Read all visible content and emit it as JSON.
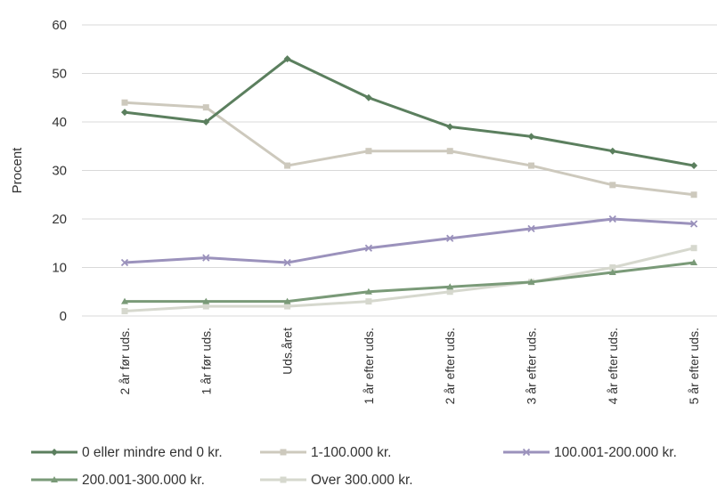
{
  "chart_data": {
    "type": "line",
    "title": "",
    "xlabel": "",
    "ylabel": "Procent",
    "ylim": [
      0,
      60
    ],
    "yticks": [
      0,
      10,
      20,
      30,
      40,
      50,
      60
    ],
    "grid": true,
    "legend_position": "bottom",
    "categories": [
      "2 år før uds.",
      "1 år før uds.",
      "Uds.året",
      "1 år efter uds.",
      "2 år efter uds.",
      "3 år efter uds.",
      "4 år efter uds.",
      "5 år efter uds."
    ],
    "series": [
      {
        "name": "0 eller mindre end 0 kr.",
        "color": "#5b7f5e",
        "marker": "diamond",
        "values": [
          42,
          40,
          53,
          45,
          39,
          37,
          34,
          31
        ]
      },
      {
        "name": "1-100.000 kr.",
        "color": "#cdc9bd",
        "marker": "square",
        "values": [
          44,
          43,
          31,
          34,
          34,
          31,
          27,
          25
        ]
      },
      {
        "name": "100.001-200.000 kr.",
        "color": "#9b92bc",
        "marker": "x",
        "values": [
          11,
          12,
          11,
          14,
          16,
          18,
          20,
          19
        ]
      },
      {
        "name": "200.001-300.000 kr.",
        "color": "#7a9a78",
        "marker": "triangle",
        "values": [
          3,
          3,
          3,
          5,
          6,
          7,
          9,
          11
        ]
      },
      {
        "name": "Over 300.000 kr.",
        "color": "#d6d8ce",
        "marker": "square",
        "values": [
          1,
          2,
          2,
          3,
          5,
          7,
          10,
          14
        ]
      }
    ]
  }
}
